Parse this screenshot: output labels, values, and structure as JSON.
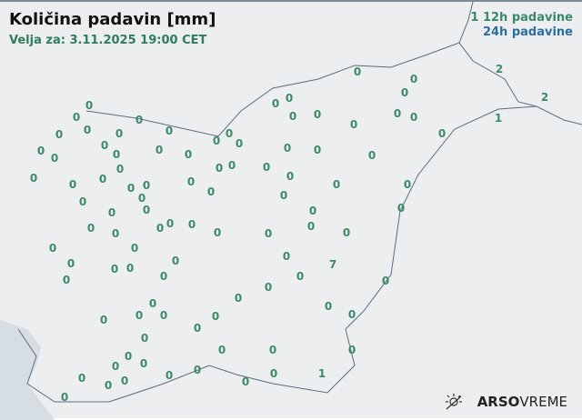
{
  "header": {
    "title": "Količina padavin [mm]",
    "valid": "Velja za: 3.11.2025 19:00 CET"
  },
  "legend": {
    "item12h": "12h padavine",
    "item24h": "24h padavine",
    "sample12h": "1",
    "color12h": "#3a8a6a",
    "color24h": "#2a6fa0"
  },
  "brand": {
    "bold": "ARSO",
    "light": "VREME",
    "icon": "sun-cloud-icon"
  },
  "stations": [
    0,
    0,
    2,
    0,
    0,
    0,
    2,
    0,
    0,
    0,
    0,
    0,
    0,
    1,
    0,
    0,
    0,
    0,
    0,
    0,
    0,
    0,
    0,
    0,
    0,
    0,
    0,
    0,
    0,
    0,
    0,
    0,
    0,
    0,
    0,
    0,
    0,
    0,
    0,
    0,
    0,
    0,
    0,
    0,
    0,
    0,
    0,
    0,
    0,
    0,
    0,
    0,
    0,
    0,
    0,
    0,
    0,
    0,
    0,
    0,
    0,
    0,
    0,
    0,
    0,
    0,
    0,
    0,
    7,
    0,
    0,
    0,
    0,
    0,
    0,
    0,
    0,
    0,
    0,
    0,
    0,
    0,
    0,
    0,
    0,
    0,
    0,
    0,
    0,
    0,
    0,
    0,
    0,
    0,
    0,
    0,
    0,
    0,
    1,
    0,
    0
  ]
}
